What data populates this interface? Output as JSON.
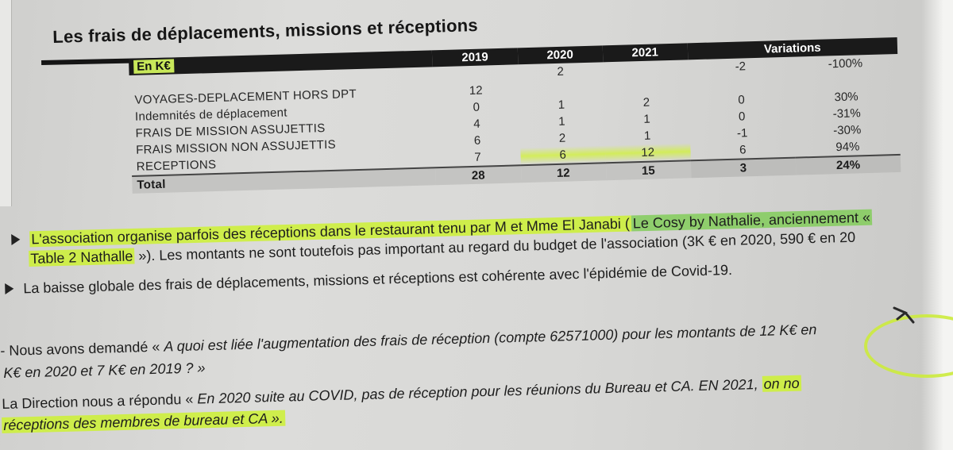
{
  "document": {
    "title": "Les frais de déplacements, missions et réceptions",
    "table": {
      "header_label": "En K€",
      "years": [
        "2019",
        "2020",
        "2021"
      ],
      "variations_label": "Variations",
      "header_row_values": {
        "y2019": "",
        "y2020": "2",
        "y2021": "",
        "var_abs": "-2",
        "var_pct": "-100%"
      },
      "rows": [
        {
          "label": "VOYAGES-DEPLACEMENT HORS DPT",
          "y2019": "12",
          "y2020": "",
          "y2021": "",
          "var_abs": "",
          "var_pct": ""
        },
        {
          "label": "Indemnités de déplacement",
          "y2019": "0",
          "y2020": "1",
          "y2021": "2",
          "var_abs": "0",
          "var_pct": "30%"
        },
        {
          "label": "FRAIS DE MISSION ASSUJETTIS",
          "y2019": "4",
          "y2020": "1",
          "y2021": "1",
          "var_abs": "0",
          "var_pct": "-31%"
        },
        {
          "label": "FRAIS MISSION NON ASSUJETTIS",
          "y2019": "6",
          "y2020": "2",
          "y2021": "1",
          "var_abs": "-1",
          "var_pct": "-30%"
        },
        {
          "label": "RECEPTIONS",
          "y2019": "7",
          "y2020": "6",
          "y2021": "12",
          "var_abs": "6",
          "var_pct": "94%"
        }
      ],
      "total": {
        "label": "Total",
        "y2019": "28",
        "y2020": "12",
        "y2021": "15",
        "var_abs": "3",
        "var_pct": "24%"
      }
    },
    "bullets": {
      "b1_part1": "L'association organise parfois des réceptions dans le restaurant tenu par M et Mme El Janabi (",
      "b1_part2": "Le Cosy by Nathalie, anciennement «",
      "b1_line2_part1": "Table 2 Nathalle",
      "b1_line2_part2": " »). Les montants ne sont toutefois pas important au regard du budget de l'association (3K € en 2020, 590 € en 20",
      "b2": "La baisse globale des frais de déplacements, missions et réceptions est cohérente avec l'épidémie de Covid-19.",
      "q_prefix": "- Nous avons demandé « ",
      "q_italic": "A quoi est liée l'augmentation des frais de réception (compte 62571000) pour les montants de 12 K€ en",
      "q_line2": "K€ en 2020 et 7 K€ en 2019 ? »",
      "a_prefix": "La Direction nous a répondu « ",
      "a_italic": "En 2020 suite au COVID, pas de réception pour les réunions du Bureau et CA. EN 2021, ",
      "a_hl": "on no",
      "a_line2": "réceptions des membres de bureau et CA »."
    },
    "colors": {
      "highlight_yellow": "#cdf03c",
      "highlight_green": "#82cd5a",
      "header_black": "#1a1a1a"
    }
  }
}
